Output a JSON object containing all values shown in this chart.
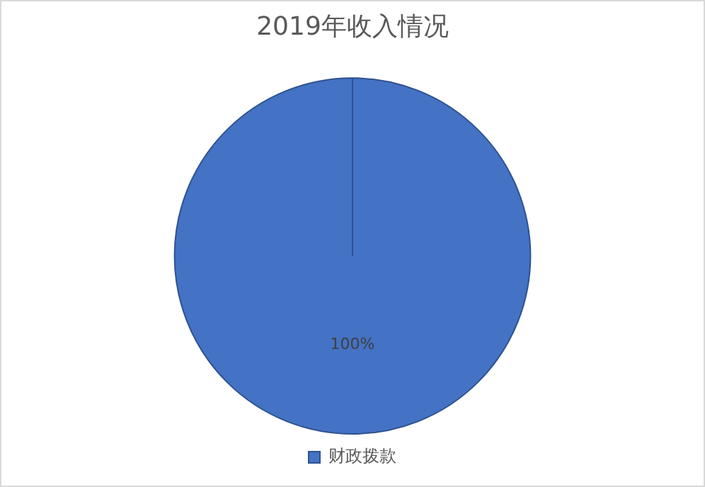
{
  "chart_data": {
    "type": "pie",
    "title": "2019年收入情况",
    "categories": [
      "财政拨款"
    ],
    "values": [
      100
    ],
    "colors": [
      "#4472c4"
    ],
    "value_labels": [
      "100%"
    ],
    "legend": "bottom"
  }
}
